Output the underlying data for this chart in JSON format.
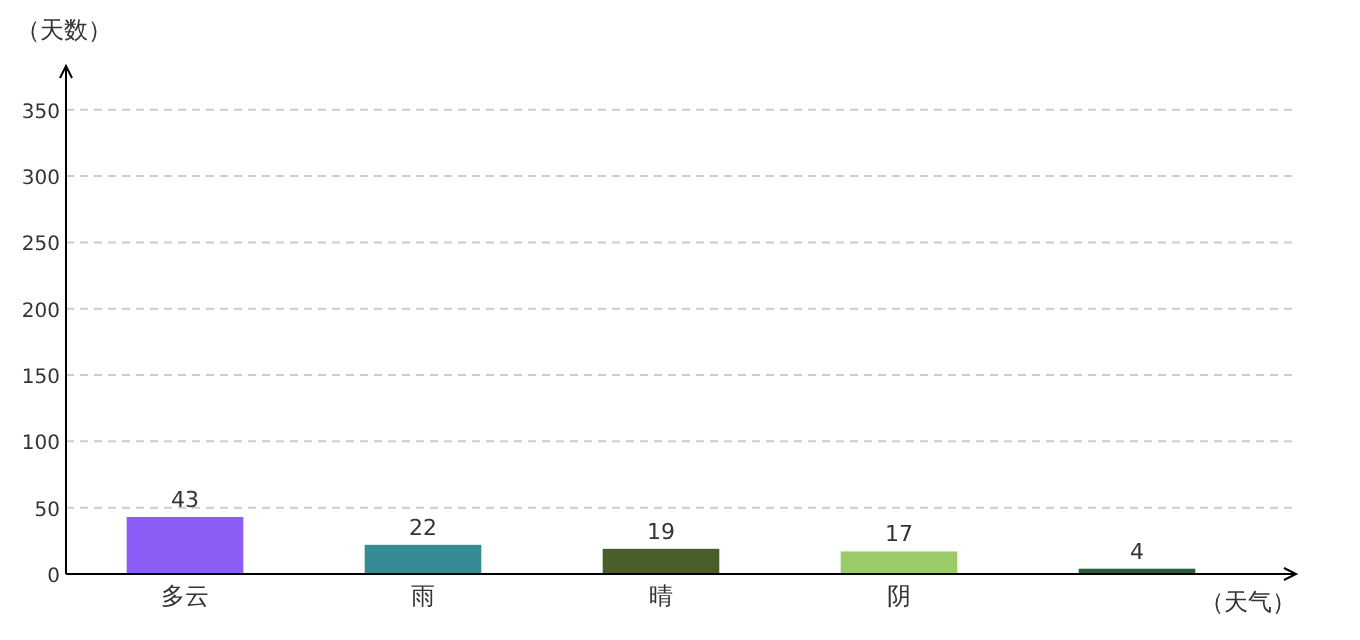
{
  "chart_data": {
    "type": "bar",
    "xlabel": "（天气）",
    "ylabel": "（天数）",
    "categories": [
      "多云",
      "雨",
      "晴",
      "阴",
      null
    ],
    "values": [
      43,
      22,
      19,
      17,
      4
    ],
    "colors": [
      "#8b5cf6",
      "#368c94",
      "#4a5e2a",
      "#99cc66",
      "#2a5e3a"
    ],
    "ylim": [
      0,
      380
    ],
    "yticks": [
      0,
      50,
      100,
      150,
      200,
      250,
      300,
      350
    ],
    "grid": "y",
    "data_labels": true
  }
}
